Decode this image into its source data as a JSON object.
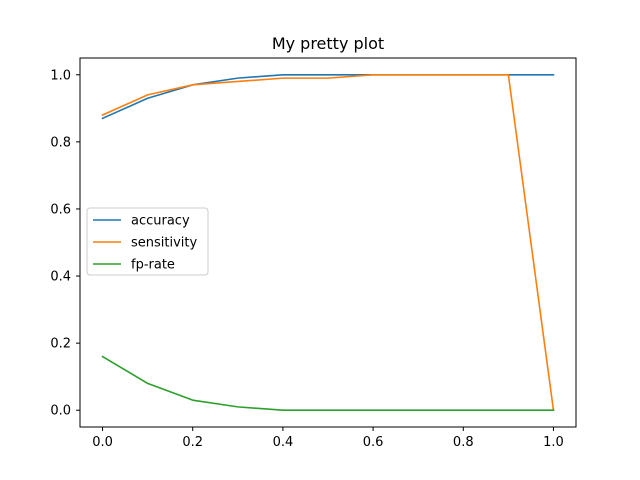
{
  "chart_data": {
    "type": "line",
    "title": "My pretty plot",
    "xlabel": "",
    "ylabel": "",
    "xlim": [
      -0.05,
      1.05
    ],
    "ylim": [
      -0.05,
      1.05
    ],
    "grid": false,
    "legend_position": "center-left",
    "x_ticks": [
      0.0,
      0.2,
      0.4,
      0.6,
      0.8,
      1.0
    ],
    "x_tick_labels": [
      "0.0",
      "0.2",
      "0.4",
      "0.6",
      "0.8",
      "1.0"
    ],
    "y_ticks": [
      0.0,
      0.2,
      0.4,
      0.6,
      0.8,
      1.0
    ],
    "y_tick_labels": [
      "0.0",
      "0.2",
      "0.4",
      "0.6",
      "0.8",
      "1.0"
    ],
    "x": [
      0.0,
      0.1,
      0.2,
      0.3,
      0.4,
      0.5,
      0.6,
      0.7,
      0.8,
      0.9,
      1.0
    ],
    "series": [
      {
        "name": "accuracy",
        "color": "#1f77b4",
        "values": [
          0.87,
          0.93,
          0.97,
          0.99,
          1.0,
          1.0,
          1.0,
          1.0,
          1.0,
          1.0,
          1.0
        ]
      },
      {
        "name": "sensitivity",
        "color": "#ff7f0e",
        "values": [
          0.88,
          0.94,
          0.97,
          0.98,
          0.99,
          0.99,
          1.0,
          1.0,
          1.0,
          1.0,
          0.0
        ]
      },
      {
        "name": "fp-rate",
        "color": "#2ca02c",
        "values": [
          0.16,
          0.08,
          0.03,
          0.01,
          0.0,
          0.0,
          0.0,
          0.0,
          0.0,
          0.0,
          0.0
        ]
      }
    ]
  }
}
